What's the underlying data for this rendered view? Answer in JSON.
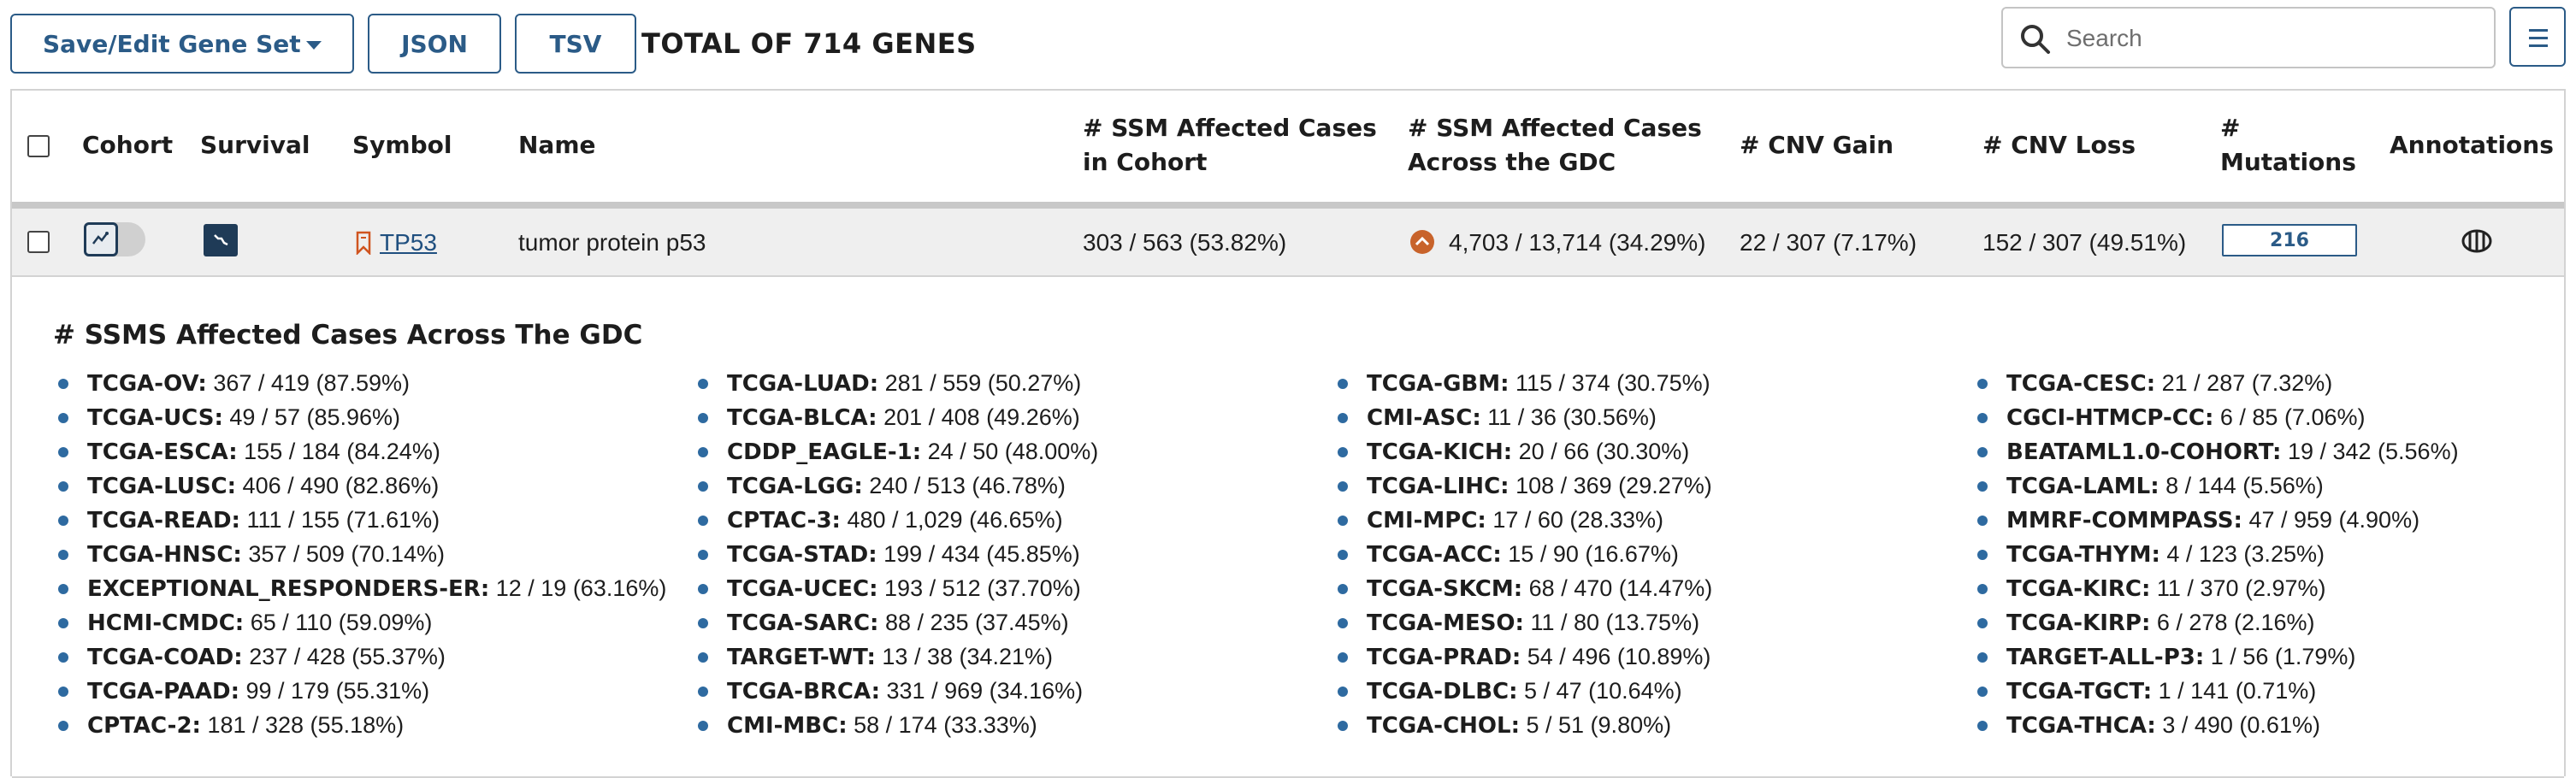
{
  "toolbar": {
    "save_label": "Save/Edit Gene Set",
    "json_label": "JSON",
    "tsv_label": "TSV",
    "total_text": "TOTAL OF 714 GENES",
    "search_placeholder": "Search"
  },
  "table": {
    "headers": {
      "cohort": "Cohort",
      "survival": "Survival",
      "symbol": "Symbol",
      "name": "Name",
      "ssm_cohort_1": "# SSM Affected Cases",
      "ssm_cohort_2": "in Cohort",
      "ssm_gdc_1": "# SSM Affected Cases",
      "ssm_gdc_2": "Across the GDC",
      "cnv_gain": "# CNV Gain",
      "cnv_loss": "# CNV Loss",
      "mutations_1": "#",
      "mutations_2": "Mutations",
      "annotations": "Annotations"
    },
    "row": {
      "symbol": "TP53",
      "name": "tumor protein p53",
      "ssm_cohort": "303 / 563 (53.82%)",
      "ssm_gdc": "4,703 / 13,714 (34.29%)",
      "cnv_gain": "22 / 307 (7.17%)",
      "cnv_loss": "152 / 307 (49.51%)",
      "mutations": "216"
    }
  },
  "expanded": {
    "title": "# SSMS Affected Cases Across The GDC",
    "columns": [
      [
        {
          "project": "TCGA-OV:",
          "value": "367 / 419 (87.59%)"
        },
        {
          "project": "TCGA-UCS:",
          "value": "49 / 57 (85.96%)"
        },
        {
          "project": "TCGA-ESCA:",
          "value": "155 / 184 (84.24%)"
        },
        {
          "project": "TCGA-LUSC:",
          "value": "406 / 490 (82.86%)"
        },
        {
          "project": "TCGA-READ:",
          "value": "111 / 155 (71.61%)"
        },
        {
          "project": "TCGA-HNSC:",
          "value": "357 / 509 (70.14%)"
        },
        {
          "project": "EXCEPTIONAL_RESPONDERS-ER:",
          "value": "12 / 19 (63.16%)"
        },
        {
          "project": "HCMI-CMDC:",
          "value": "65 / 110 (59.09%)"
        },
        {
          "project": "TCGA-COAD:",
          "value": "237 / 428 (55.37%)"
        },
        {
          "project": "TCGA-PAAD:",
          "value": "99 / 179 (55.31%)"
        },
        {
          "project": "CPTAC-2:",
          "value": "181 / 328 (55.18%)"
        }
      ],
      [
        {
          "project": "TCGA-LUAD:",
          "value": "281 / 559 (50.27%)"
        },
        {
          "project": "TCGA-BLCA:",
          "value": "201 / 408 (49.26%)"
        },
        {
          "project": "CDDP_EAGLE-1:",
          "value": "24 / 50 (48.00%)"
        },
        {
          "project": "TCGA-LGG:",
          "value": "240 / 513 (46.78%)"
        },
        {
          "project": "CPTAC-3:",
          "value": "480 / 1,029 (46.65%)"
        },
        {
          "project": "TCGA-STAD:",
          "value": "199 / 434 (45.85%)"
        },
        {
          "project": "TCGA-UCEC:",
          "value": "193 / 512 (37.70%)"
        },
        {
          "project": "TCGA-SARC:",
          "value": "88 / 235 (37.45%)"
        },
        {
          "project": "TARGET-WT:",
          "value": "13 / 38 (34.21%)"
        },
        {
          "project": "TCGA-BRCA:",
          "value": "331 / 969 (34.16%)"
        },
        {
          "project": "CMI-MBC:",
          "value": "58 / 174 (33.33%)"
        }
      ],
      [
        {
          "project": "TCGA-GBM:",
          "value": "115 / 374 (30.75%)"
        },
        {
          "project": "CMI-ASC:",
          "value": "11 / 36 (30.56%)"
        },
        {
          "project": "TCGA-KICH:",
          "value": "20 / 66 (30.30%)"
        },
        {
          "project": "TCGA-LIHC:",
          "value": "108 / 369 (29.27%)"
        },
        {
          "project": "CMI-MPC:",
          "value": "17 / 60 (28.33%)"
        },
        {
          "project": "TCGA-ACC:",
          "value": "15 / 90 (16.67%)"
        },
        {
          "project": "TCGA-SKCM:",
          "value": "68 / 470 (14.47%)"
        },
        {
          "project": "TCGA-MESO:",
          "value": "11 / 80 (13.75%)"
        },
        {
          "project": "TCGA-PRAD:",
          "value": "54 / 496 (10.89%)"
        },
        {
          "project": "TCGA-DLBC:",
          "value": "5 / 47 (10.64%)"
        },
        {
          "project": "TCGA-CHOL:",
          "value": "5 / 51 (9.80%)"
        }
      ],
      [
        {
          "project": "TCGA-CESC:",
          "value": "21 / 287 (7.32%)"
        },
        {
          "project": "CGCI-HTMCP-CC:",
          "value": "6 / 85 (7.06%)"
        },
        {
          "project": "BEATAML1.0-COHORT:",
          "value": "19 / 342 (5.56%)"
        },
        {
          "project": "TCGA-LAML:",
          "value": "8 / 144 (5.56%)"
        },
        {
          "project": "MMRF-COMMPASS:",
          "value": "47 / 959 (4.90%)"
        },
        {
          "project": "TCGA-THYM:",
          "value": "4 / 123 (3.25%)"
        },
        {
          "project": "TCGA-KIRC:",
          "value": "11 / 370 (2.97%)"
        },
        {
          "project": "TCGA-KIRP:",
          "value": "6 / 278 (2.16%)"
        },
        {
          "project": "TARGET-ALL-P3:",
          "value": "1 / 56 (1.79%)"
        },
        {
          "project": "TCGA-TGCT:",
          "value": "1 / 141 (0.71%)"
        },
        {
          "project": "TCGA-THCA:",
          "value": "3 / 490 (0.61%)"
        }
      ]
    ]
  },
  "colors": {
    "primary": "#2b5b87",
    "bullet": "#2e6aa0",
    "row_bg": "#efefef",
    "arrow_badge": "#c8632b"
  }
}
